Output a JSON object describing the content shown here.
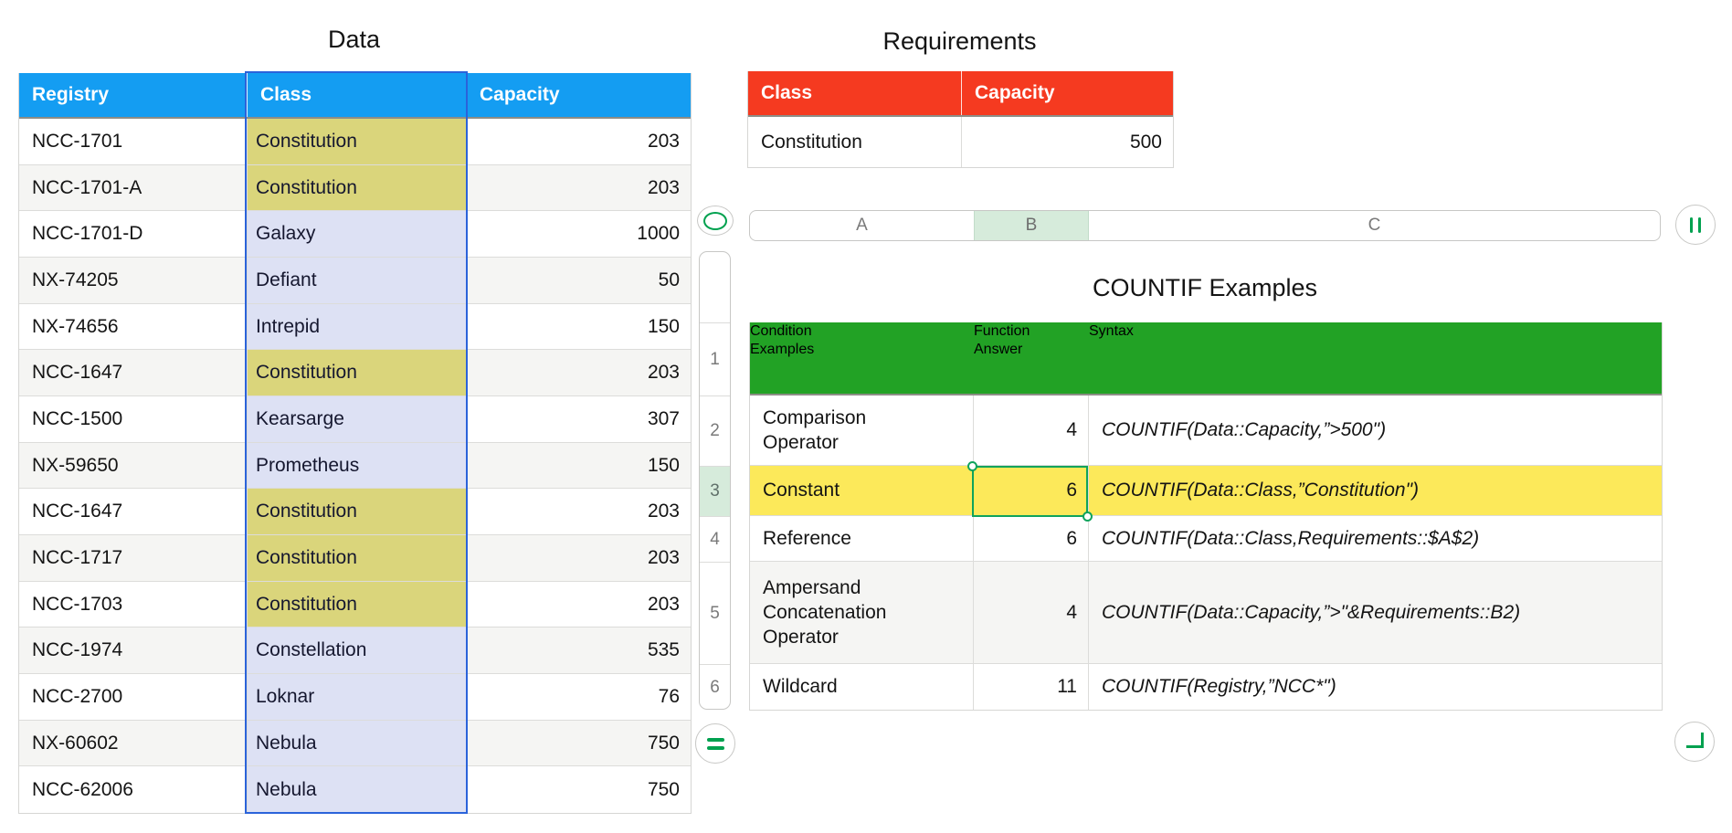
{
  "colors": {
    "blue_header": "#149DF2",
    "red_header": "#F53A20",
    "green_header": "#22A225",
    "khaki": "#DAD57B",
    "lavender": "#DDE1F4",
    "yellow_row": "#FCE95A",
    "band_gray": "#F5F5F3",
    "tint_green": "#D6EBDB",
    "selection_green": "#0FA35C",
    "col_select_blue": "#2B63DA",
    "icon_green": "#00A14F"
  },
  "data_table": {
    "title": "Data",
    "columns": [
      "Registry",
      "Class",
      "Capacity"
    ],
    "highlighted_class": "Constitution",
    "rows": [
      {
        "registry": "NCC-1701",
        "class": "Constitution",
        "capacity": "203"
      },
      {
        "registry": "NCC-1701-A",
        "class": "Constitution",
        "capacity": "203"
      },
      {
        "registry": "NCC-1701-D",
        "class": "Galaxy",
        "capacity": "1000"
      },
      {
        "registry": "NX-74205",
        "class": "Defiant",
        "capacity": "50"
      },
      {
        "registry": "NX-74656",
        "class": "Intrepid",
        "capacity": "150"
      },
      {
        "registry": "NCC-1647",
        "class": "Constitution",
        "capacity": "203"
      },
      {
        "registry": "NCC-1500",
        "class": "Kearsarge",
        "capacity": "307"
      },
      {
        "registry": "NX-59650",
        "class": "Prometheus",
        "capacity": "150"
      },
      {
        "registry": "NCC-1647",
        "class": "Constitution",
        "capacity": "203"
      },
      {
        "registry": "NCC-1717",
        "class": "Constitution",
        "capacity": "203"
      },
      {
        "registry": "NCC-1703",
        "class": "Constitution",
        "capacity": "203"
      },
      {
        "registry": "NCC-1974",
        "class": "Constellation",
        "capacity": "535"
      },
      {
        "registry": "NCC-2700",
        "class": "Loknar",
        "capacity": "76"
      },
      {
        "registry": "NX-60602",
        "class": "Nebula",
        "capacity": "750"
      },
      {
        "registry": "NCC-62006",
        "class": "Nebula",
        "capacity": "750"
      }
    ]
  },
  "requirements_table": {
    "title": "Requirements",
    "columns": [
      "Class",
      "Capacity"
    ],
    "rows": [
      {
        "class": "Constitution",
        "capacity": "500"
      }
    ]
  },
  "column_bar": {
    "columns": [
      "A",
      "B",
      "C"
    ],
    "selected": "B"
  },
  "row_bar": {
    "rows": [
      "1",
      "2",
      "3",
      "4",
      "5",
      "6"
    ],
    "selected": "3"
  },
  "countif_table": {
    "title": "COUNTIF Examples",
    "columns": [
      "Condition\nExamples",
      "Function\nAnswer",
      "Syntax"
    ],
    "selected_cell": "B3",
    "rows": [
      {
        "condition": "Comparison\nOperator",
        "answer": "4",
        "syntax": "COUNTIF(Data::Capacity,”>500\")"
      },
      {
        "condition": "Constant",
        "answer": "6",
        "syntax": "COUNTIF(Data::Class,”Constitution\")"
      },
      {
        "condition": "Reference",
        "answer": "6",
        "syntax": "COUNTIF(Data::Class,Requirements::$A$2)"
      },
      {
        "condition": "Ampersand\nConcatenation\nOperator",
        "answer": "4",
        "syntax": "COUNTIF(Data::Capacity,”>\"&Requirements::B2)"
      },
      {
        "condition": "Wildcard",
        "answer": "11",
        "syntax": "COUNTIF(Registry,”NCC*\")"
      }
    ]
  }
}
